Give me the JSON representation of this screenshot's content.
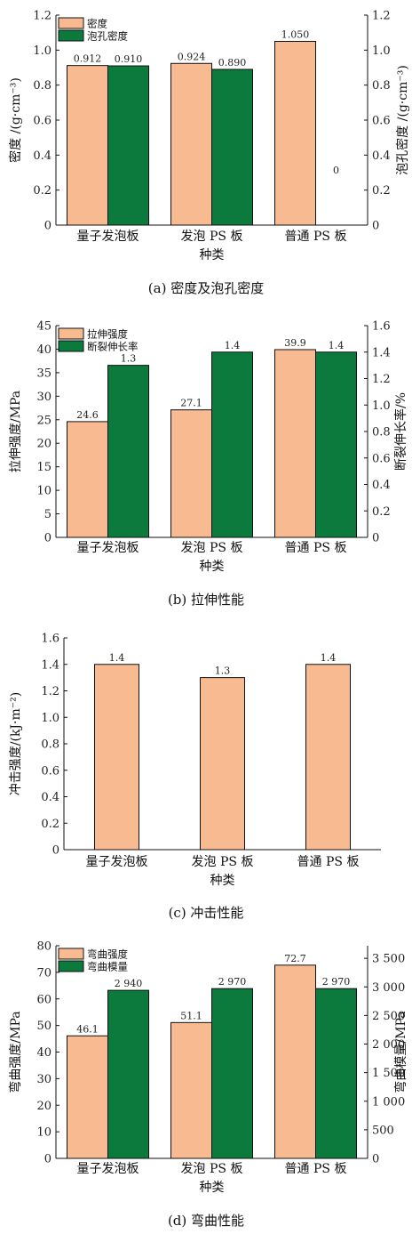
{
  "colors": {
    "bar_a": "#F7BA91",
    "bar_b": "#0C7A3C",
    "edge": "#111111"
  },
  "chart_data": [
    {
      "type": "bar",
      "caption": "(a) 密度及泡孔密度",
      "categories": [
        "量子发泡板",
        "发泡 PS 板",
        "普通 PS 板"
      ],
      "xlabel": "种类",
      "ylabel": "密度 /(g·cm⁻³)",
      "ylabel_right": "泡孔密度 /(g·cm⁻³)",
      "ylim": [
        0,
        1.2
      ],
      "yticks": [
        "0",
        "0.2",
        "0.4",
        "0.6",
        "0.8",
        "1.0",
        "1.2"
      ],
      "ylim_right": [
        0,
        1.2
      ],
      "yticks_right": [
        "0",
        "0.2",
        "0.4",
        "0.6",
        "0.8",
        "1.0",
        "1.2"
      ],
      "series": [
        {
          "name": "密度",
          "axis": "left",
          "values": [
            0.912,
            0.924,
            1.05
          ],
          "labels": [
            "0.912",
            "0.924",
            "1.050"
          ]
        },
        {
          "name": "泡孔密度",
          "axis": "right",
          "values": [
            0.91,
            0.89,
            0
          ],
          "labels": [
            "0.910",
            "0.890",
            "0"
          ]
        }
      ],
      "legend": "top-left"
    },
    {
      "type": "bar",
      "caption": "(b) 拉伸性能",
      "categories": [
        "量子发泡板",
        "发泡 PS 板",
        "普通 PS 板"
      ],
      "xlabel": "种类",
      "ylabel": "拉伸强度/MPa",
      "ylabel_right": "断裂伸长率/%",
      "ylim": [
        0,
        45
      ],
      "yticks": [
        "0",
        "5",
        "10",
        "15",
        "20",
        "25",
        "30",
        "35",
        "40",
        "45"
      ],
      "ylim_right": [
        0,
        1.6
      ],
      "yticks_right": [
        "0",
        "0.2",
        "0.4",
        "0.6",
        "0.8",
        "1.0",
        "1.2",
        "1.4",
        "1.6"
      ],
      "series": [
        {
          "name": "拉伸强度",
          "axis": "left",
          "values": [
            24.6,
            27.1,
            39.9
          ],
          "labels": [
            "24.6",
            "27.1",
            "39.9"
          ]
        },
        {
          "name": "断裂伸长率",
          "axis": "right",
          "values": [
            1.3,
            1.4,
            1.4
          ],
          "labels": [
            "1.3",
            "1.4",
            "1.4"
          ]
        }
      ],
      "legend": "top-left"
    },
    {
      "type": "bar",
      "caption": "(c) 冲击性能",
      "categories": [
        "量子发泡板",
        "发泡 PS 板",
        "普通 PS 板"
      ],
      "xlabel": "种类",
      "ylabel": "冲击强度/(kJ·m⁻²)",
      "ylim": [
        0,
        1.6
      ],
      "yticks": [
        "0",
        "0.2",
        "0.4",
        "0.6",
        "0.8",
        "1.0",
        "1.2",
        "1.4",
        "1.6"
      ],
      "series": [
        {
          "name": "",
          "axis": "left",
          "values": [
            1.4,
            1.3,
            1.4
          ],
          "labels": [
            "1.4",
            "1.3",
            "1.4"
          ]
        }
      ],
      "legend": "none"
    },
    {
      "type": "bar",
      "caption": "(d) 弯曲性能",
      "categories": [
        "量子发泡板",
        "发泡 PS 板",
        "普通 PS 板"
      ],
      "xlabel": "种类",
      "ylabel": "弯曲强度/MPa",
      "ylabel_right": "弯曲模量/MPa",
      "ylim": [
        0,
        80
      ],
      "yticks": [
        "0",
        "10",
        "20",
        "30",
        "40",
        "50",
        "60",
        "70",
        "80"
      ],
      "ylim_right": [
        0,
        3720
      ],
      "yticks_right": [
        "0",
        "500",
        "1 000",
        "1 500",
        "2 000",
        "2 500",
        "3 000",
        "3 500"
      ],
      "series": [
        {
          "name": "弯曲强度",
          "axis": "left",
          "values": [
            46.1,
            51.1,
            72.7
          ],
          "labels": [
            "46.1",
            "51.1",
            "72.7"
          ]
        },
        {
          "name": "弯曲模量",
          "axis": "right",
          "values": [
            2940,
            2970,
            2970
          ],
          "labels": [
            "2 940",
            "2 970",
            "2 970"
          ]
        }
      ],
      "legend": "top-left"
    }
  ]
}
